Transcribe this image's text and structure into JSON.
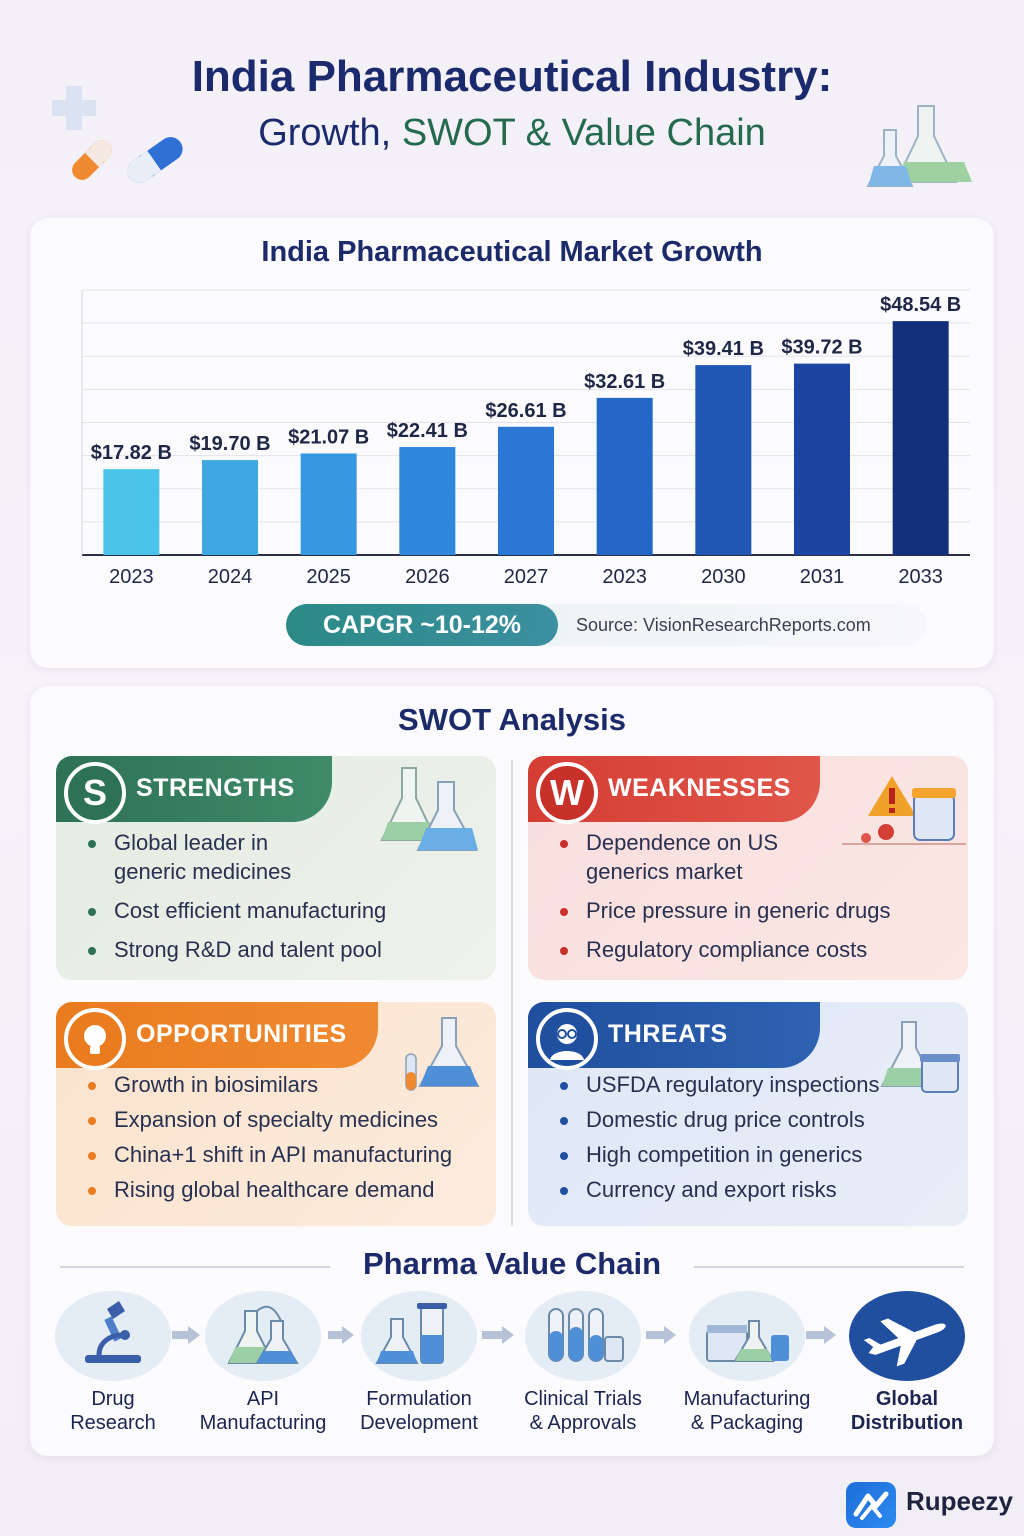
{
  "header": {
    "title": "India Pharmaceutical Industry:",
    "subtitle_part1": "Growth, ",
    "subtitle_part2": "SWOT & Value Chain"
  },
  "chart_data": {
    "type": "bar",
    "title": "India Pharmaceutical Market Growth",
    "categories": [
      "2023",
      "2024",
      "2025",
      "2026",
      "2027",
      "2023",
      "2030",
      "2031",
      "2033"
    ],
    "values": [
      17.82,
      19.7,
      21.07,
      22.41,
      26.61,
      32.61,
      39.41,
      39.72,
      48.54
    ],
    "data_labels": [
      "$17.82 B",
      "$19.70 B",
      "$21.07 B",
      "$22.41 B",
      "$26.61 B",
      "$32.61 B",
      "$39.41 B",
      "$39.72 B",
      "$48.54 B"
    ],
    "xlabel": "",
    "ylabel": "",
    "ylim": [
      0,
      55
    ],
    "grid": true,
    "colors": [
      "#4cc4ea",
      "#3fa8e3",
      "#3699e0",
      "#2f88dc",
      "#2a78d4",
      "#2567c6",
      "#2056b4",
      "#1b45a0",
      "#13307a"
    ]
  },
  "cagr": {
    "label": "CAPGR ~10-12%",
    "source": "Source: VisionResearchReports.com"
  },
  "swot": {
    "title": "SWOT Analysis",
    "strengths": {
      "letter": "S",
      "label": "STRENGTHS",
      "items": [
        "Global leader in generic medicines",
        "Cost efficient manufacturing",
        "Strong R&D and talent pool"
      ]
    },
    "weaknesses": {
      "letter": "W",
      "label": "WEAKNESSES",
      "items": [
        "Dependence on US generics market",
        "Price pressure in generic drugs",
        "Regulatory compliance costs"
      ]
    },
    "opportunities": {
      "label": "OPPORTUNITIES",
      "items": [
        "Growth in biosimilars",
        "Expansion of specialty medicines",
        "China+1 shift in API manufacturing",
        "Rising global healthcare demand"
      ]
    },
    "threats": {
      "label": "THREATS",
      "items": [
        "USFDA regulatory inspections",
        "Domestic drug price controls",
        "High competition in generics",
        "Currency and export risks"
      ]
    }
  },
  "value_chain": {
    "title": "Pharma Value Chain",
    "steps": [
      {
        "line1": "Drug",
        "line2": "Research",
        "icon": "microscope-icon"
      },
      {
        "line1": "API",
        "line2": "Manufacturing",
        "icon": "flasks-icon"
      },
      {
        "line1": "Formulation",
        "line2": "Development",
        "icon": "beakers-icon"
      },
      {
        "line1": "Clinical Trials",
        "line2": "& Approvals",
        "icon": "test-tubes-icon"
      },
      {
        "line1": "Manufacturing",
        "line2": "& Packaging",
        "icon": "packaging-icon"
      },
      {
        "line1": "Global",
        "line2": "Distribution",
        "icon": "airplane-icon"
      }
    ]
  },
  "brand": {
    "name": "Rupeezy"
  }
}
